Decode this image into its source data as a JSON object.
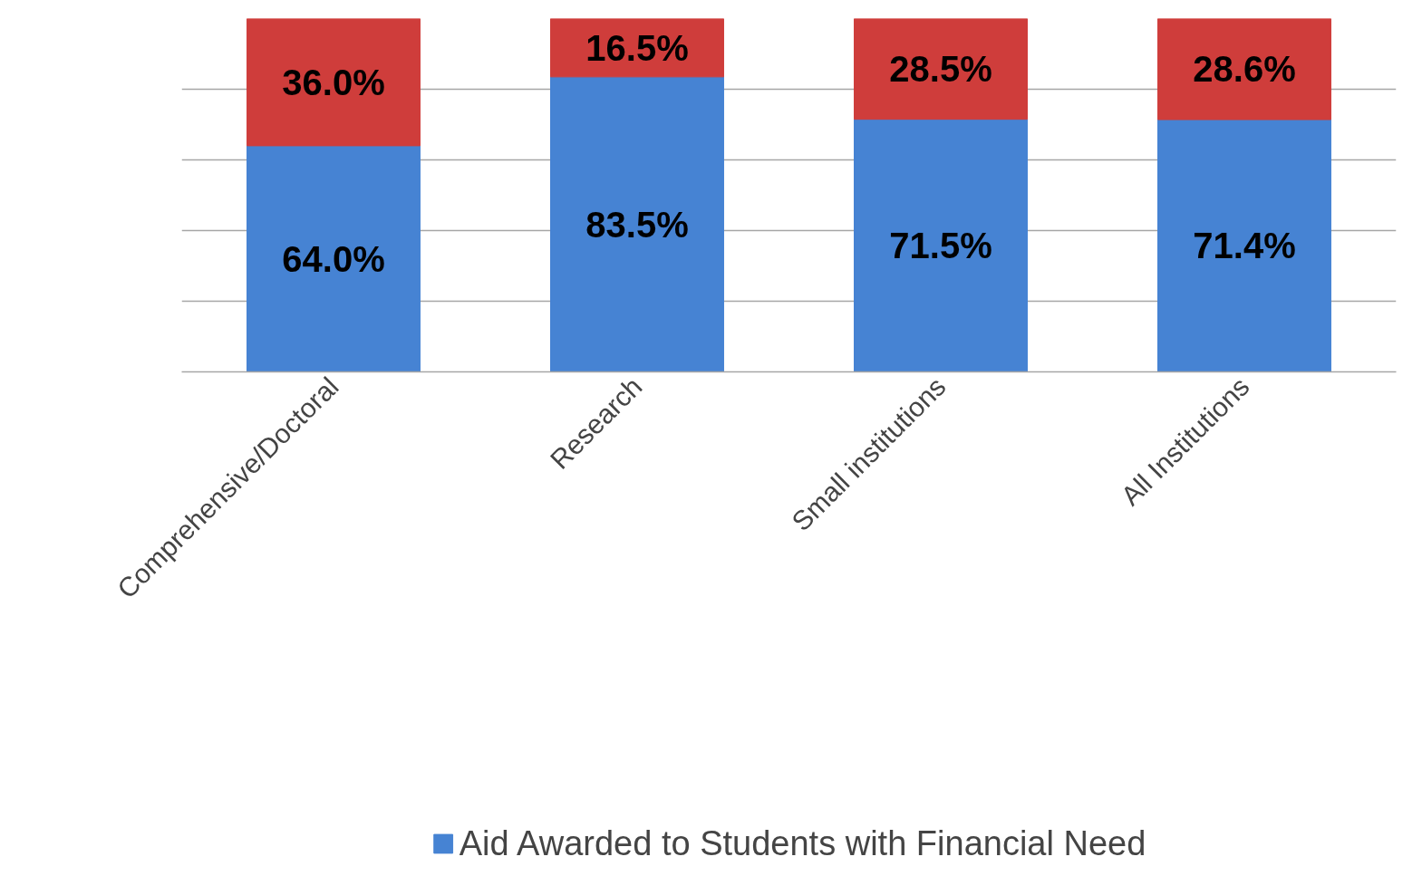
{
  "chart_data": {
    "type": "bar",
    "stacked": true,
    "categories": [
      "Comprehensive/Doctoral",
      "Research",
      "Small institutions",
      "All Institutions"
    ],
    "series": [
      {
        "name": "Aid Awarded to Students with Financial Need",
        "color": "#4683d3",
        "values": [
          64.0,
          83.5,
          71.5,
          71.4
        ],
        "value_labels": [
          "64.0%",
          "83.5%",
          "71.5%",
          "71.4%"
        ]
      },
      {
        "color": "#cf3d3b",
        "values": [
          36.0,
          16.5,
          28.5,
          28.6
        ],
        "value_labels": [
          "36.0%",
          "16.5%",
          "28.5%",
          "28.6%"
        ]
      }
    ],
    "grid": "y",
    "legend": "bottom",
    "tick_labels": "x"
  }
}
